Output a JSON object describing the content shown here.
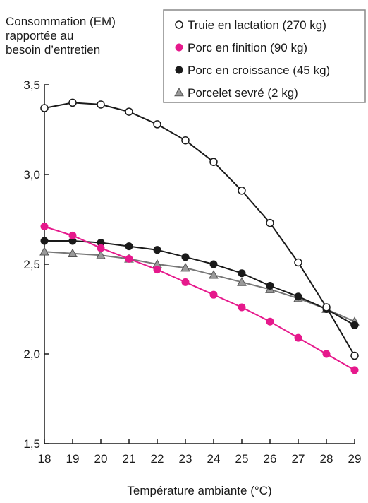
{
  "chart_data": {
    "type": "line",
    "ylabel_lines": [
      "Consommation (EM)",
      "rapportée au",
      "besoin d’entretien"
    ],
    "xlabel": "Température ambiante (°C)",
    "x": [
      18,
      19,
      20,
      21,
      22,
      23,
      24,
      25,
      26,
      27,
      28,
      29
    ],
    "xlim": [
      18,
      29
    ],
    "ylim": [
      1.5,
      3.5
    ],
    "yticks": [
      "1,5",
      "2,0",
      "2,5",
      "3,0",
      "3,5"
    ],
    "ytick_values": [
      1.5,
      2.0,
      2.5,
      3.0,
      3.5
    ],
    "grid": false,
    "legend_position": "top-right",
    "series": [
      {
        "name": "Truie en lactation (270 kg)",
        "marker": "open-circle",
        "color": "#1a1a1a",
        "values": [
          3.37,
          3.4,
          3.39,
          3.35,
          3.28,
          3.19,
          3.07,
          2.91,
          2.73,
          2.51,
          2.26,
          1.99
        ]
      },
      {
        "name": "Porc en finition (90 kg)",
        "marker": "filled-circle",
        "color": "#e6198c",
        "values": [
          2.71,
          2.66,
          2.59,
          2.53,
          2.47,
          2.4,
          2.33,
          2.26,
          2.18,
          2.09,
          2.0,
          1.91
        ]
      },
      {
        "name": "Porc en croissance (45 kg)",
        "marker": "filled-circle",
        "color": "#1a1a1a",
        "values": [
          2.63,
          2.63,
          2.62,
          2.6,
          2.58,
          2.54,
          2.5,
          2.45,
          2.38,
          2.32,
          2.25,
          2.16
        ]
      },
      {
        "name": "Porcelet sevré (2 kg)",
        "marker": "triangle",
        "color": "#888888",
        "values": [
          2.57,
          2.56,
          2.55,
          2.53,
          2.5,
          2.48,
          2.44,
          2.4,
          2.36,
          2.31,
          2.25,
          2.18
        ]
      }
    ]
  }
}
